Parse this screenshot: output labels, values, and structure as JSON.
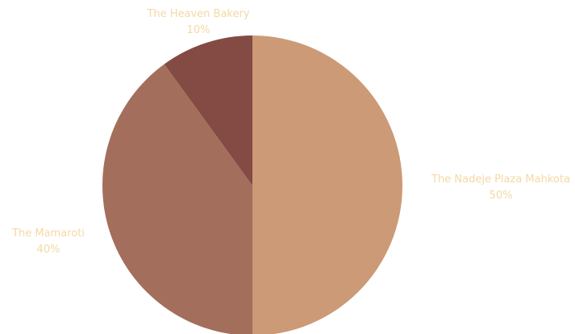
{
  "chart_data": {
    "type": "pie",
    "categories": [
      "The Nadeje Plaza Mahkota",
      "The Mamaroti",
      "The Heaven Bakery"
    ],
    "values": [
      50,
      40,
      10
    ],
    "value_labels": [
      "50%",
      "40%",
      "10%"
    ],
    "colors": [
      "#cc9a76",
      "#a36f5c",
      "#834b43"
    ],
    "label_color": "#f3d9a4",
    "start_angle": "12 o'clock",
    "direction": "clockwise",
    "legend": "none"
  }
}
